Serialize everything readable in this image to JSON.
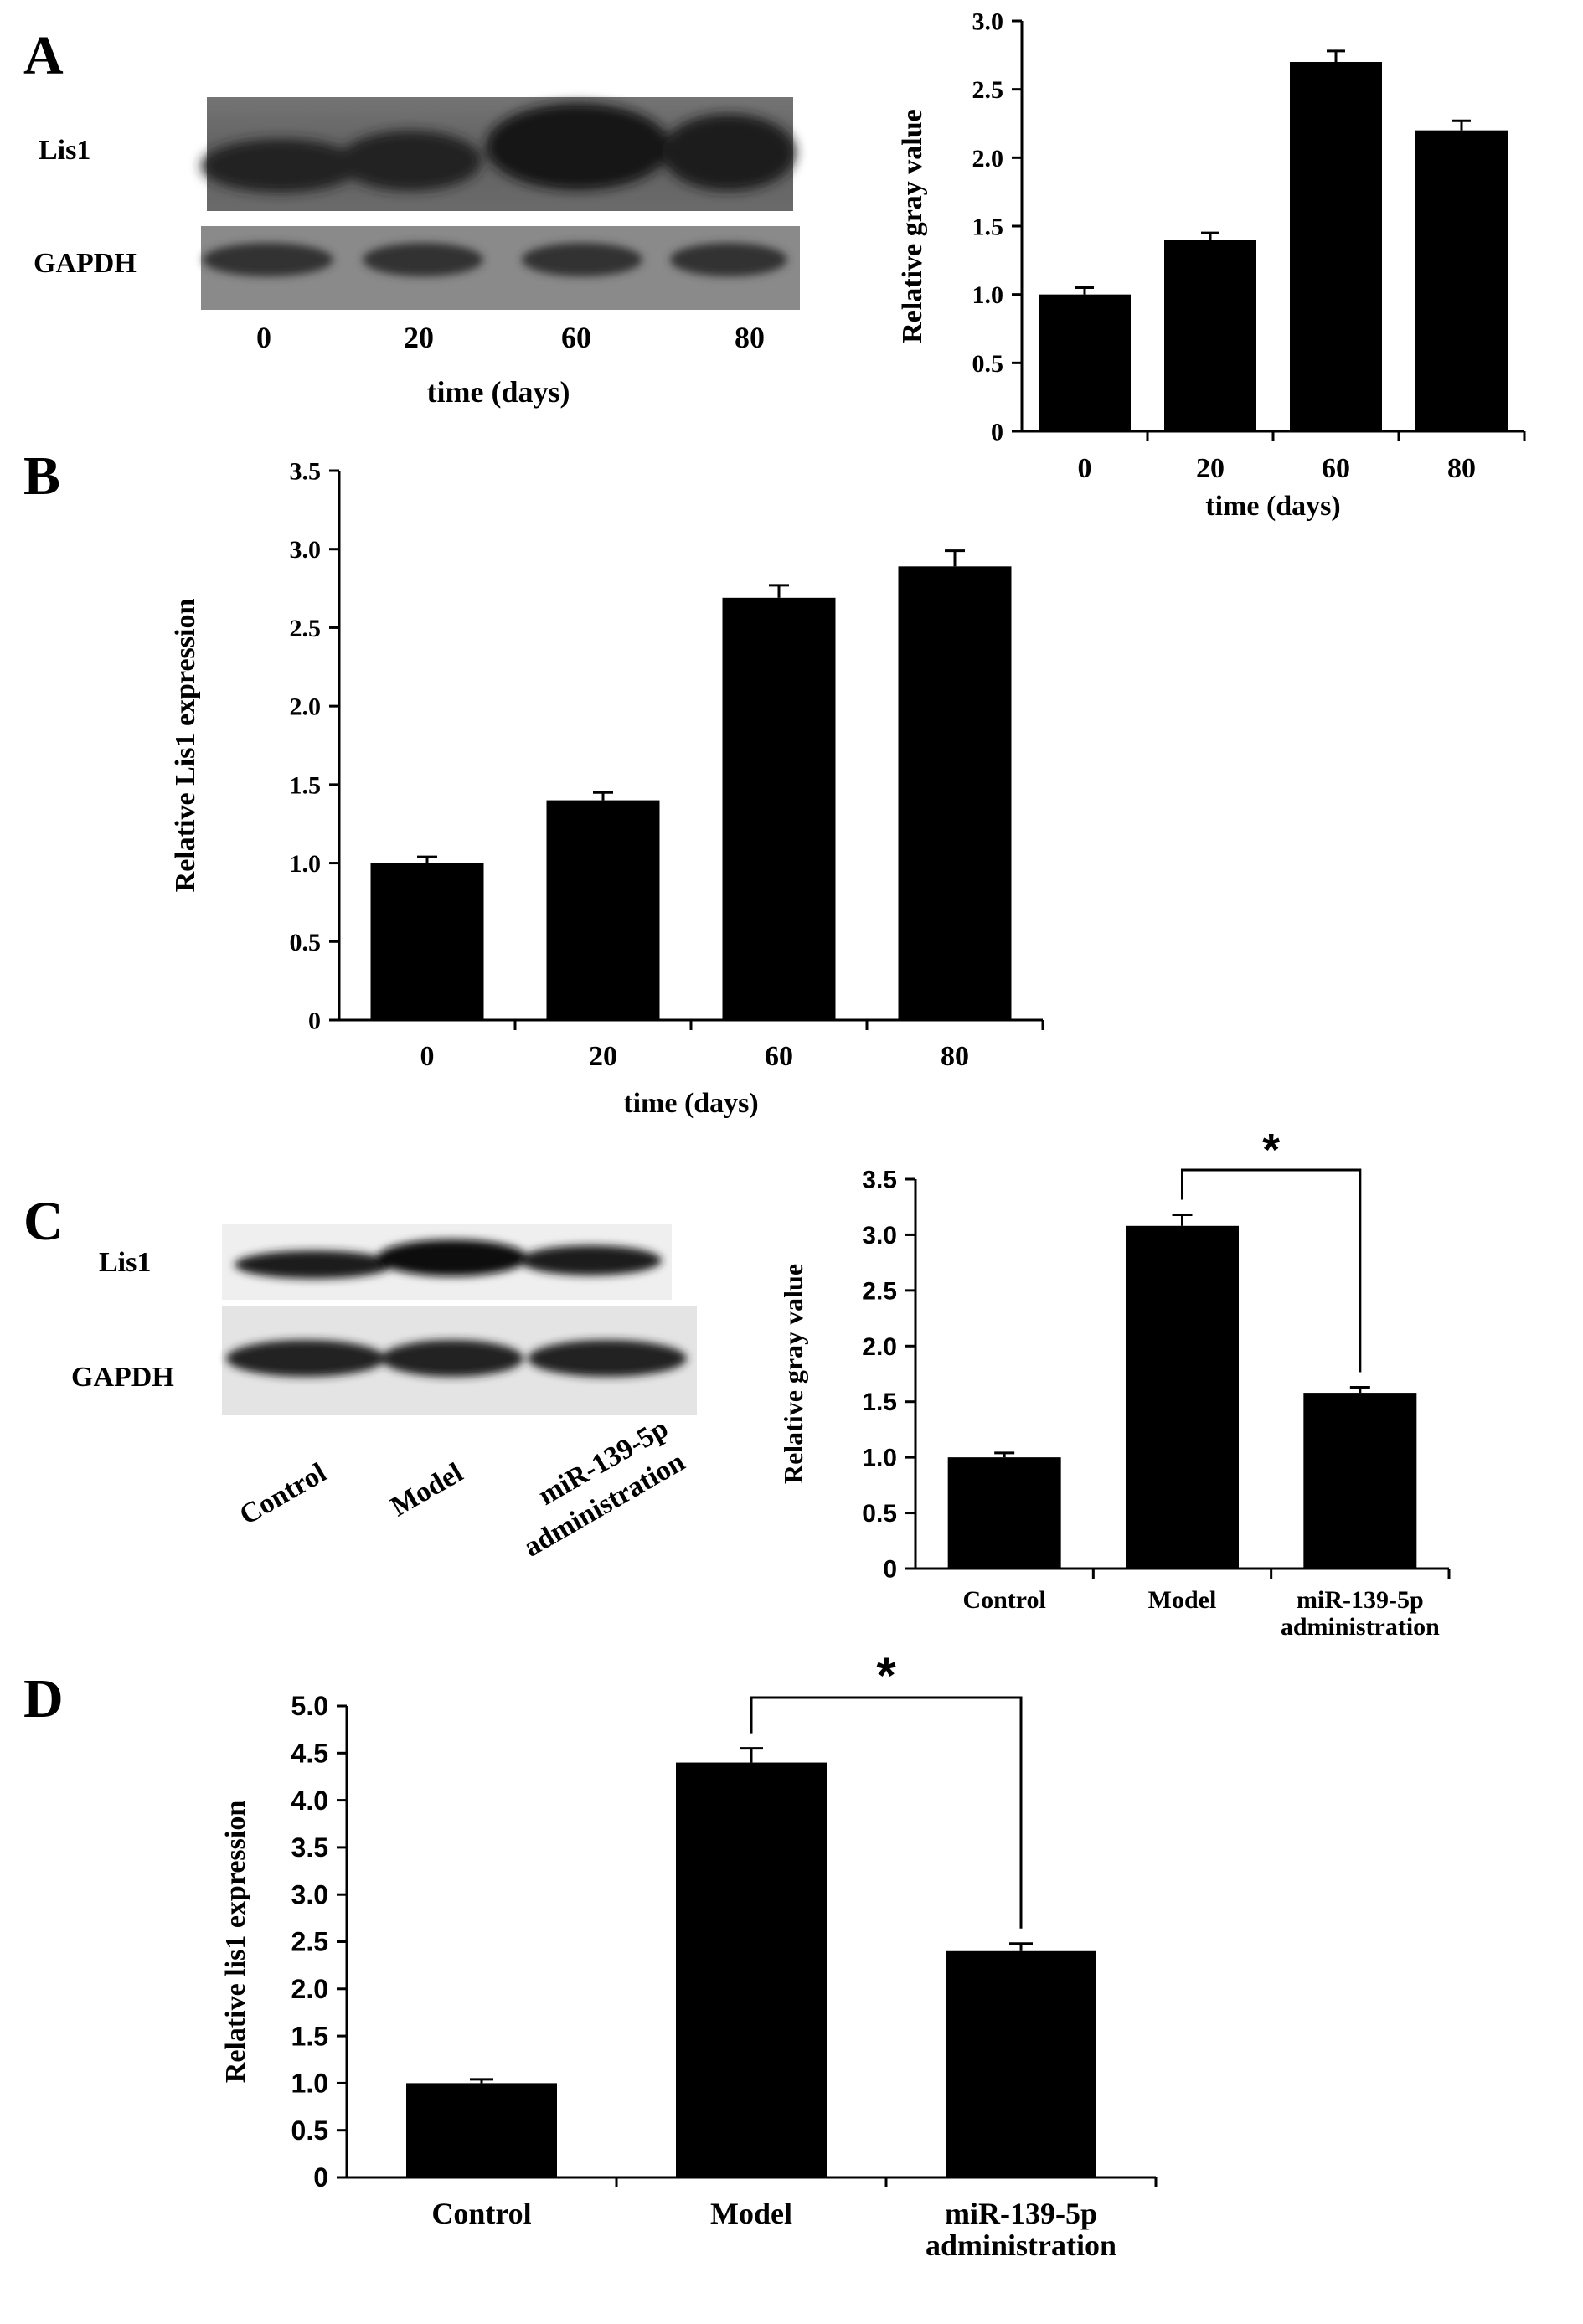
{
  "panels": [
    {
      "letter": "A",
      "blot": {
        "rows": [
          "Lis1",
          "GAPDH"
        ],
        "lanes": [
          "0",
          "20",
          "60",
          "80"
        ],
        "xlabel": "time (days)"
      }
    },
    {
      "letter": "B"
    },
    {
      "letter": "C",
      "blot": {
        "rows": [
          "Lis1",
          "GAPDH"
        ],
        "lanes": [
          "Control",
          "Model",
          "miR-139-5p",
          "administration"
        ]
      }
    },
    {
      "letter": "D"
    }
  ],
  "chart_data": [
    {
      "id": "A-chart",
      "type": "bar",
      "categories": [
        "0",
        "20",
        "60",
        "80"
      ],
      "values": [
        1.0,
        1.4,
        2.7,
        2.2
      ],
      "errors": [
        0.05,
        0.05,
        0.08,
        0.07
      ],
      "xlabel": "time (days)",
      "ylabel": "Relative gray value",
      "ylim": [
        0,
        3.0
      ],
      "yticks": [
        0,
        0.5,
        1.0,
        1.5,
        2.0,
        2.5,
        3.0
      ],
      "ytick_labels": [
        "0",
        "0.5",
        "1.0",
        "1.5",
        "2.0",
        "2.5",
        "3.0"
      ],
      "grid": false,
      "legend": "none"
    },
    {
      "id": "B-chart",
      "type": "bar",
      "categories": [
        "0",
        "20",
        "60",
        "80"
      ],
      "values": [
        1.0,
        1.4,
        2.69,
        2.89
      ],
      "errors": [
        0.04,
        0.05,
        0.08,
        0.1
      ],
      "xlabel": "time (days)",
      "ylabel": "Relative Lis1 expression",
      "ylim": [
        0,
        3.5
      ],
      "yticks": [
        0,
        0.5,
        1.0,
        1.5,
        2.0,
        2.5,
        3.0,
        3.5
      ],
      "ytick_labels": [
        "0",
        "0.5",
        "1.0",
        "1.5",
        "2.0",
        "2.5",
        "3.0",
        "3.5"
      ],
      "grid": false,
      "legend": "none"
    },
    {
      "id": "C-chart",
      "type": "bar",
      "categories": [
        "Control",
        "Model",
        "miR-139-5p administration"
      ],
      "category_lines": [
        [
          "Control"
        ],
        [
          "Model"
        ],
        [
          "miR-139-5p",
          "administration"
        ]
      ],
      "values": [
        1.0,
        3.08,
        1.58
      ],
      "errors": [
        0.04,
        0.1,
        0.05
      ],
      "ylabel": "Relative gray value",
      "ylim": [
        0,
        3.5
      ],
      "yticks": [
        0,
        0.5,
        1.0,
        1.5,
        2.0,
        2.5,
        3.0,
        3.5
      ],
      "ytick_labels": [
        "0",
        "0.5",
        "1.0",
        "1.5",
        "2.0",
        "2.5",
        "3.0",
        "3.5"
      ],
      "significance": {
        "from": 1,
        "to": 2,
        "label": "*"
      },
      "grid": false,
      "legend": "none"
    },
    {
      "id": "D-chart",
      "type": "bar",
      "categories": [
        "Control",
        "Model",
        "miR-139-5p administration"
      ],
      "category_lines": [
        [
          "Control"
        ],
        [
          "Model"
        ],
        [
          "miR-139-5p",
          "administration"
        ]
      ],
      "values": [
        1.0,
        4.4,
        2.4
      ],
      "errors": [
        0.04,
        0.15,
        0.08
      ],
      "ylabel": "Relative lis1 expression",
      "ylim": [
        0,
        5.0
      ],
      "yticks": [
        0,
        0.5,
        1.0,
        1.5,
        2.0,
        2.5,
        3.0,
        3.5,
        4.0,
        4.5,
        5.0
      ],
      "ytick_labels": [
        "0",
        "0.5",
        "1.0",
        "1.5",
        "2.0",
        "2.5",
        "3.0",
        "3.5",
        "4.0",
        "4.5",
        "5.0"
      ],
      "significance": {
        "from": 1,
        "to": 2,
        "label": "*"
      },
      "grid": false,
      "legend": "none"
    }
  ]
}
